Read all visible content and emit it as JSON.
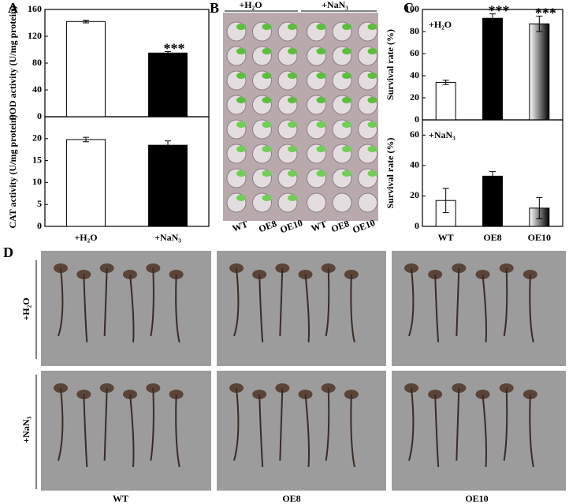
{
  "panels": {
    "a": "A",
    "b": "B",
    "c": "C",
    "d": "D"
  },
  "photo_b": {
    "treatments": [
      "+H₂O",
      "+NaN₃"
    ],
    "lines": [
      "WT",
      "OE8",
      "OE10",
      "WT",
      "OE8",
      "OE10"
    ]
  },
  "photo_d": {
    "rows": [
      "+H₂O",
      "+NaN₃"
    ],
    "columns": [
      "WT",
      "OE8",
      "OE10"
    ]
  },
  "chart_data": [
    {
      "type": "bar",
      "y_label": "POD activity (U/mg protein)",
      "values": [
        142,
        95
      ],
      "errors": [
        2,
        2
      ],
      "colors": [
        "#ffffff",
        "#000000"
      ],
      "significance": [
        null,
        "***"
      ],
      "ylim": [
        0,
        160
      ],
      "yticks": [
        0,
        40,
        80,
        120,
        160
      ]
    },
    {
      "type": "bar",
      "y_label": "CAT activity (U/mg protein)",
      "categories": [
        "+H₂O",
        "+NaN₃"
      ],
      "values": [
        19.8,
        18.5
      ],
      "errors": [
        0.5,
        1
      ],
      "colors": [
        "#ffffff",
        "#000000"
      ],
      "ylim": [
        0,
        25
      ],
      "yticks": [
        0,
        5,
        10,
        15,
        20
      ]
    },
    {
      "type": "bar",
      "label": "+H₂O",
      "y_label": "Survival rate (%)",
      "values": [
        34,
        92,
        87
      ],
      "errors": [
        2,
        4,
        7
      ],
      "colors": [
        "#ffffff",
        "#000000",
        "#8a8a8a"
      ],
      "significance": [
        null,
        "***",
        "***"
      ],
      "ylim": [
        0,
        100
      ],
      "yticks": [
        0,
        20,
        40,
        60,
        80,
        100
      ]
    },
    {
      "type": "bar",
      "label": "+NaN₃",
      "y_label": "Survival rate (%)",
      "categories": [
        "WT",
        "OE8",
        "OE10"
      ],
      "values": [
        17,
        33,
        12
      ],
      "errors": [
        8,
        3,
        7
      ],
      "colors": [
        "#ffffff",
        "#000000",
        "#8a8a8a"
      ],
      "ylim": [
        0,
        70
      ],
      "yticks": [
        0,
        20,
        40,
        60
      ]
    }
  ]
}
